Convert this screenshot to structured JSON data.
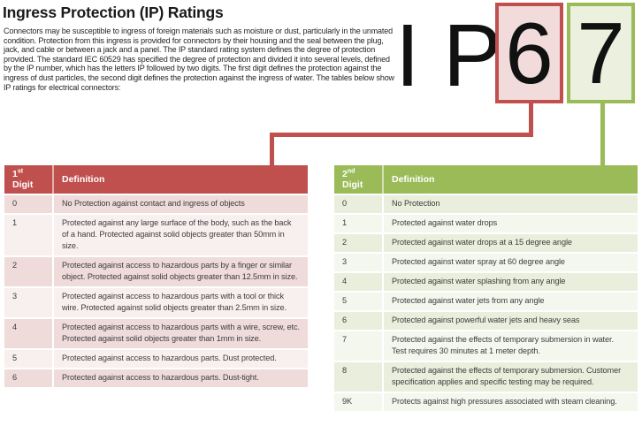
{
  "page": {
    "title": "Ingress Protection (IP) Ratings",
    "intro": "Connectors may be susceptible to ingress of foreign materials such as moisture or dust, particularly in the unmated condition.  Protection from this ingress is provided for connectors by their housing and the seal between the plug, jack, and cable or between a jack and a panel. The IP standard rating system defines the degree of protection provided. The standard IEC 60529 has specified the degree of protection and divided it into several levels, defined by the IP number, which has the letters IP followed by two digits.  The first digit defines the protection against the ingress of dust particles, the second digit defines the protection against the ingress of water. The tables below show IP ratings for electrical connectors:"
  },
  "ip_graphic": {
    "letter_1": "I",
    "letter_2": "P",
    "first_digit": "6",
    "second_digit": "7"
  },
  "colors": {
    "red-accent": "#C0504D",
    "red-fill": "#F2DCDB",
    "red-row-dark": "#F0DBDB",
    "red-row-light": "#F8EFEF",
    "green-accent": "#9BBB59",
    "green-fill": "#EBF1DE",
    "green-row-dark": "#E9EFDC",
    "green-row-light": "#F4F7EE"
  },
  "first_digit_table": {
    "header": {
      "number": "1",
      "suffix": "st",
      "rest": " Digit",
      "definition": "Definition"
    },
    "rows": [
      {
        "digit": "0",
        "definition": "No Protection against contact and ingress of objects"
      },
      {
        "digit": "1",
        "definition": "Protected against any large surface of the body, such as the back of a hand.  Protected against solid objects greater than 50mm in size."
      },
      {
        "digit": "2",
        "definition": "Protected against access to hazardous parts by a finger or similar object.  Protected against solid objects greater than 12.5mm in size."
      },
      {
        "digit": "3",
        "definition": "Protected against access to hazardous parts with a tool or thick wire.  Protected against solid objects greater than 2.5mm in size."
      },
      {
        "digit": "4",
        "definition": "Protected against access to hazardous parts with a wire, screw, etc.  Protected against solid objects greater than 1mm in size."
      },
      {
        "digit": "5",
        "definition": "Protected against access to hazardous parts.  Dust protected."
      },
      {
        "digit": "6",
        "definition": "Protected against access to hazardous parts.  Dust-tight."
      }
    ]
  },
  "second_digit_table": {
    "header": {
      "number": "2",
      "suffix": "nd",
      "rest": " Digit",
      "definition": "Definition"
    },
    "rows": [
      {
        "digit": "0",
        "definition": "No Protection"
      },
      {
        "digit": "1",
        "definition": "Protected against water drops"
      },
      {
        "digit": "2",
        "definition": "Protected against water drops at a 15 degree angle"
      },
      {
        "digit": "3",
        "definition": "Protected against water spray at 60 degree angle"
      },
      {
        "digit": "4",
        "definition": "Protected against water splashing from any angle"
      },
      {
        "digit": "5",
        "definition": "Protected against water jets from any angle"
      },
      {
        "digit": "6",
        "definition": "Protected against powerful water jets and heavy seas"
      },
      {
        "digit": "7",
        "definition": "Protected against the effects of temporary submersion in water.  Test requires 30 minutes at 1 meter depth."
      },
      {
        "digit": "8",
        "definition": "Protected against the effects of temporary submersion.  Customer specification applies and specific testing may be required."
      },
      {
        "digit": "9K",
        "definition": "Protects against high pressures associated with steam cleaning."
      }
    ]
  }
}
